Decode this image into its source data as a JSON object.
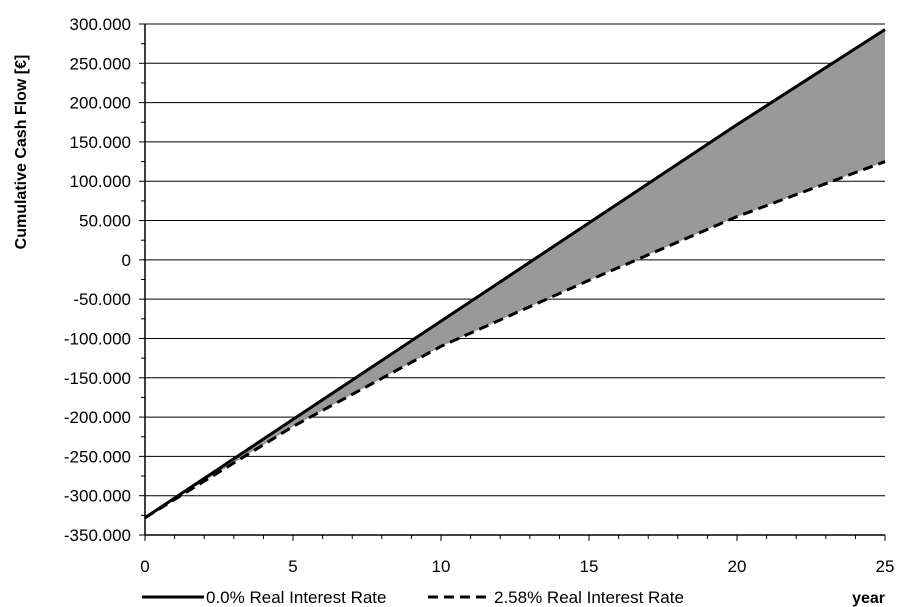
{
  "chart_data": {
    "type": "line",
    "title": "",
    "xlabel": "year",
    "ylabel": "Cumulative Cash Flow [€]",
    "xlim": [
      0,
      25
    ],
    "ylim": [
      -350000,
      300000
    ],
    "xticks": [
      0,
      5,
      10,
      15,
      20,
      25
    ],
    "xtick_labels": [
      "0",
      "5",
      "10",
      "15",
      "20",
      "25"
    ],
    "yticks": [
      300000,
      250000,
      200000,
      150000,
      100000,
      50000,
      0,
      -50000,
      -100000,
      -150000,
      -200000,
      -250000,
      -300000,
      -350000
    ],
    "ytick_labels": [
      "300.000",
      "250.000",
      "200.000",
      "150.000",
      "100.000",
      "50.000",
      "0",
      "-50.000",
      "-100.000",
      "-150.000",
      "-200.000",
      "-250.000",
      "-300.000",
      "-350.000"
    ],
    "grid": "horizontal",
    "legend_position": "bottom",
    "shaded_region": "between series",
    "colors": {
      "line": "#000000",
      "fill": "#999999",
      "grid": "#000000"
    },
    "series": [
      {
        "name": "0.0% Real Interest Rate",
        "style": "solid",
        "x": [
          0,
          5,
          10,
          15,
          20,
          25
        ],
        "values": [
          -328000,
          -203000,
          -78000,
          47000,
          172000,
          293000
        ]
      },
      {
        "name": "2.58% Real Interest Rate",
        "style": "dashed",
        "x": [
          0,
          5,
          10,
          15,
          20,
          25
        ],
        "values": [
          -328000,
          -212000,
          -110000,
          -26000,
          55000,
          125000
        ]
      }
    ]
  }
}
